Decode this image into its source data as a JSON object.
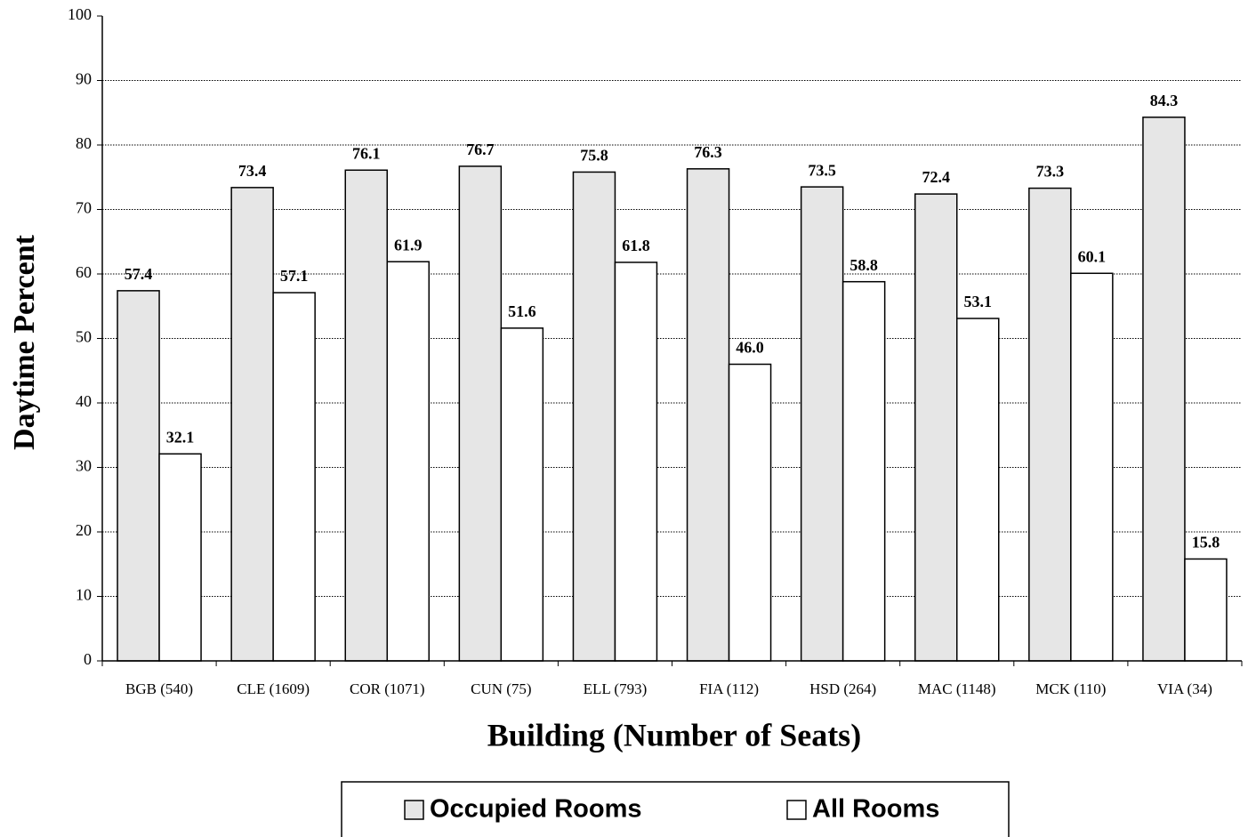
{
  "chart_data": {
    "type": "bar",
    "y_label": "Daytime Percent",
    "x_label": "Building (Number of Seats)",
    "categories": [
      "BGB (540)",
      "CLE (1609)",
      "COR (1071)",
      "CUN (75)",
      "ELL (793)",
      "FIA (112)",
      "HSD (264)",
      "MAC (1148)",
      "MCK (110)",
      "VIA (34)"
    ],
    "series": [
      {
        "name": "Occupied Rooms",
        "color": "#e6e6e6",
        "values": [
          57.4,
          73.4,
          76.1,
          76.7,
          75.8,
          76.3,
          73.5,
          72.4,
          73.3,
          84.3
        ],
        "value_labels": [
          "57.4",
          "73.4",
          "76.1",
          "76.7",
          "75.8",
          "76.3",
          "73.5",
          "72.4",
          "73.3",
          "84.3"
        ]
      },
      {
        "name": "All Rooms",
        "color": "#ffffff",
        "values": [
          32.1,
          57.1,
          61.9,
          51.6,
          61.8,
          46.0,
          58.8,
          53.1,
          60.1,
          15.8
        ],
        "value_labels": [
          "32.1",
          "57.1",
          "61.9",
          "51.6",
          "61.8",
          "46.0",
          "58.8",
          "53.1",
          "60.1",
          "15.8"
        ]
      }
    ],
    "ylim": [
      0,
      100
    ],
    "yticks": [
      0,
      10,
      20,
      30,
      40,
      50,
      60,
      70,
      80,
      90,
      100
    ],
    "grid": true,
    "legend": "bottom"
  }
}
